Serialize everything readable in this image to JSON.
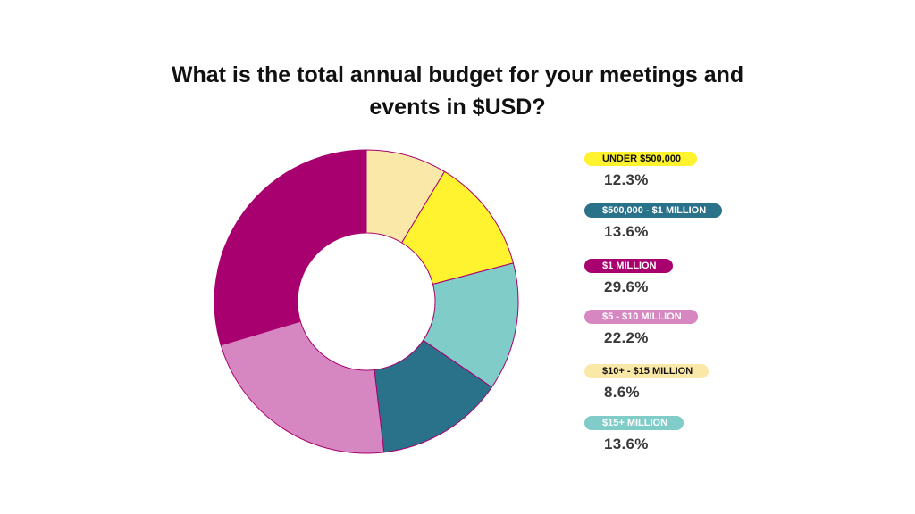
{
  "title_lines": [
    "What is the total annual budget for your meetings and",
    "events in $USD?"
  ],
  "legend": [
    {
      "label": "UNDER $500,000",
      "value": "12.3%",
      "color": "#FFF22E",
      "text_color": "#111111"
    },
    {
      "label": "$500,000 - $1 MILLION",
      "value": "13.6%",
      "color": "#2A718A",
      "text_color": "#ffffff"
    },
    {
      "label": "$1 MILLION",
      "value": "29.6%",
      "color": "#A8006F",
      "text_color": "#ffffff"
    },
    {
      "label": "$5 - $10 MILLION",
      "value": "22.2%",
      "color": "#D687C2",
      "text_color": "#ffffff"
    },
    {
      "label": "$10+ - $15 MILLION",
      "value": "8.6%",
      "color": "#FAE8A8",
      "text_color": "#111111"
    },
    {
      "label": "$15+ MILLION",
      "value": "13.6%",
      "color": "#80CCC8",
      "text_color": "#ffffff"
    }
  ],
  "chart_data": {
    "type": "pie",
    "donut": true,
    "title": "What is the total annual budget for your meetings and events in $USD?",
    "slices": [
      {
        "label": "$10+ - $15 MILLION",
        "value": 8.6,
        "color": "#FAE8A8"
      },
      {
        "label": "UNDER $500,000",
        "value": 12.3,
        "color": "#FFF22E"
      },
      {
        "label": "$15+ MILLION",
        "value": 13.6,
        "color": "#80CCC8"
      },
      {
        "label": "$500,000 - $1 MILLION",
        "value": 13.6,
        "color": "#2A718A"
      },
      {
        "label": "$5 - $10 MILLION",
        "value": 22.2,
        "color": "#D687C2"
      },
      {
        "label": "$1 MILLION",
        "value": 29.6,
        "color": "#A8006F"
      }
    ],
    "legend_position": "right",
    "slice_outline_color": "#A8006F"
  }
}
